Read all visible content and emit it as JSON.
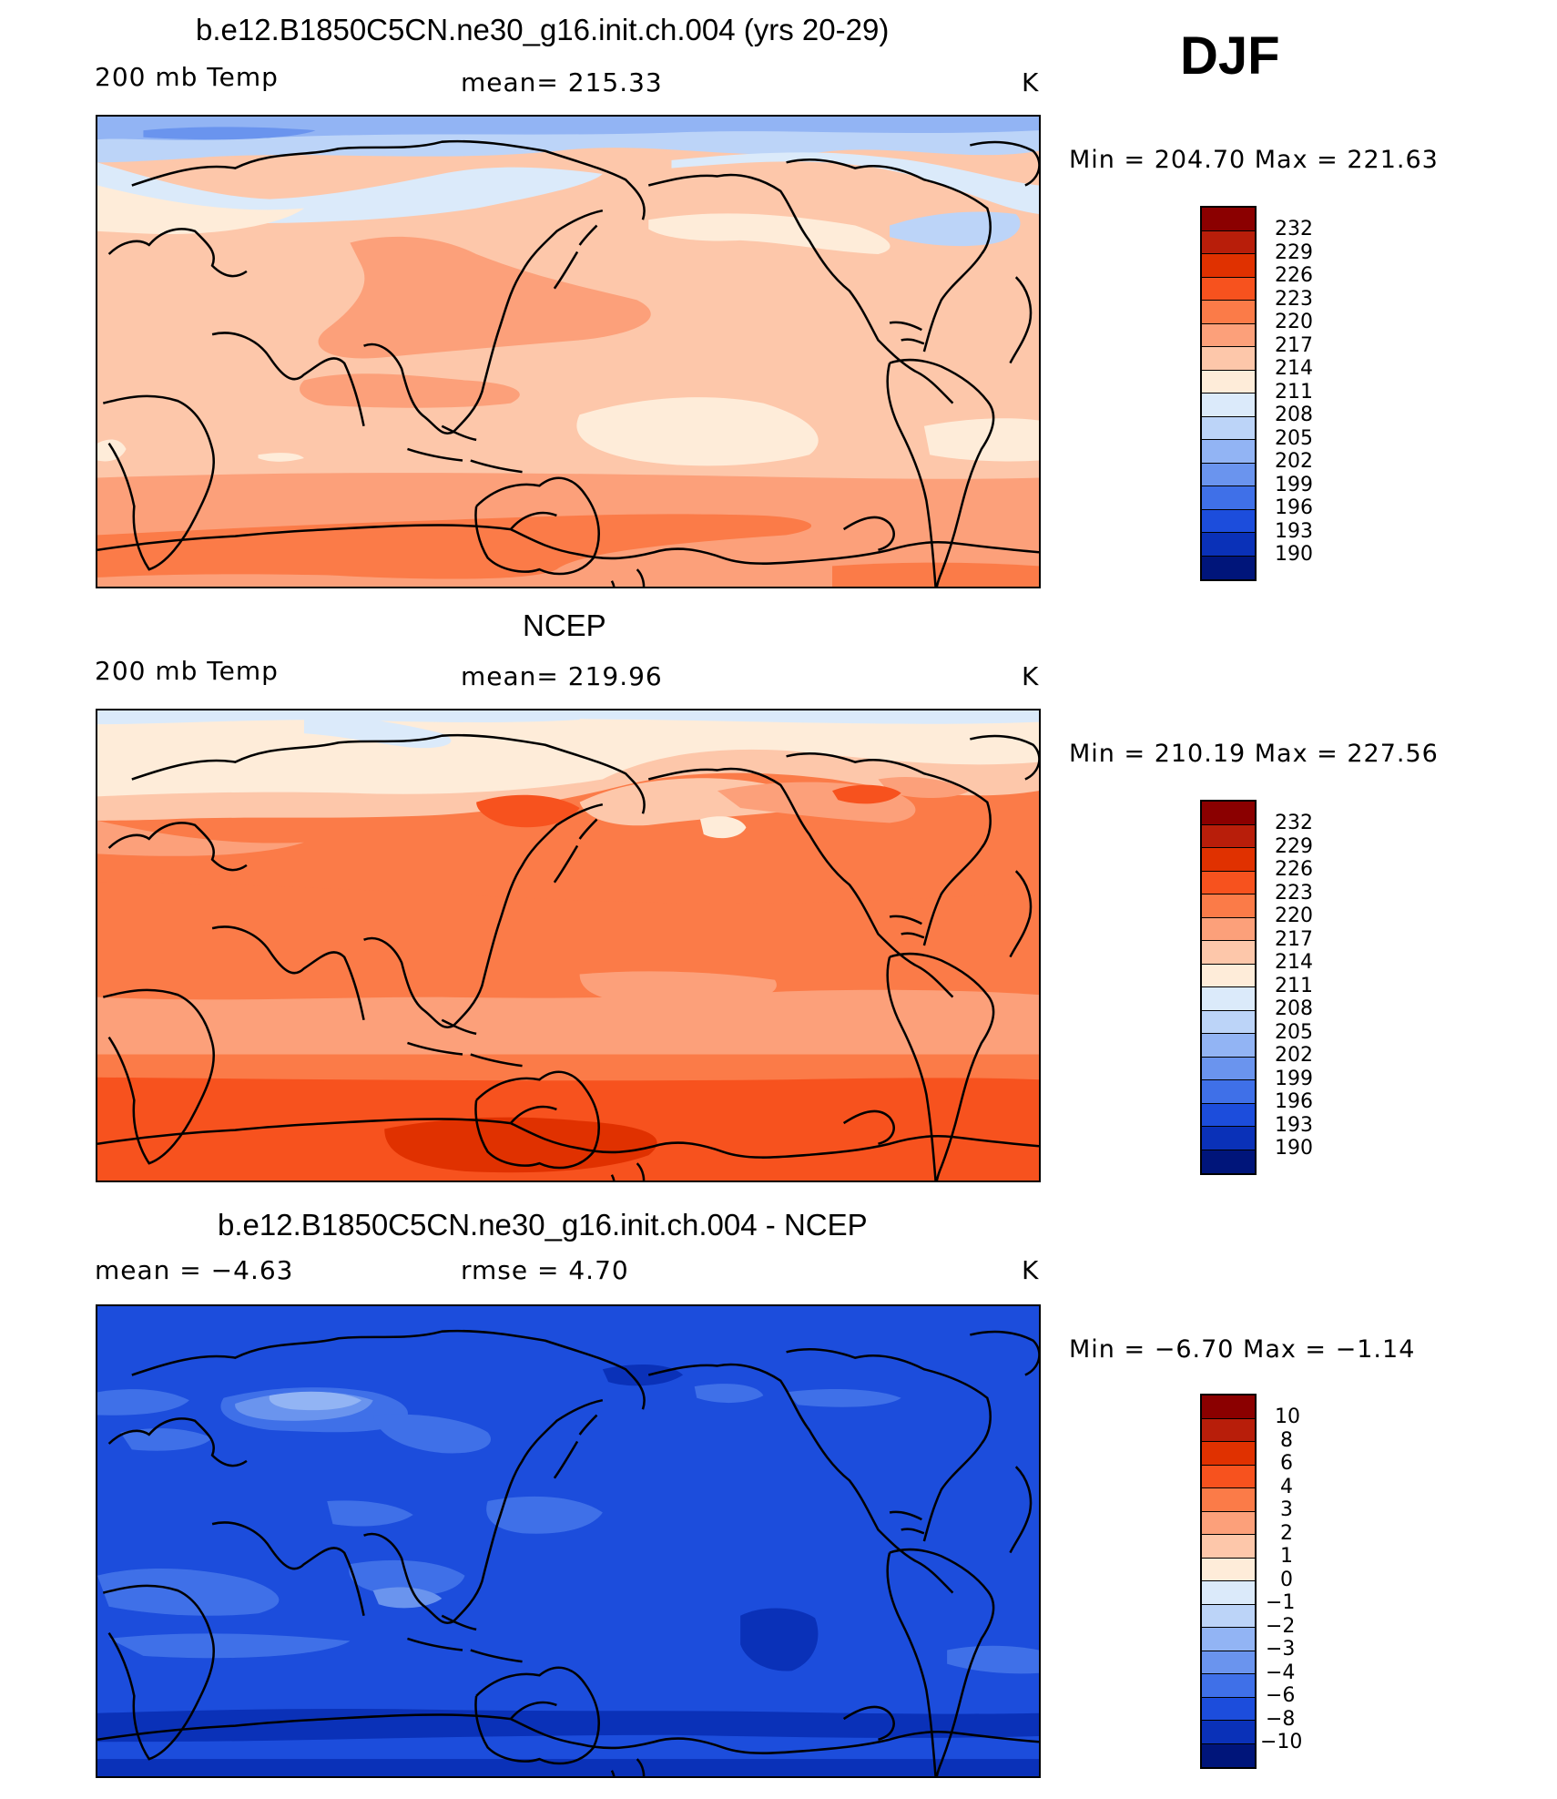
{
  "season": "DJF",
  "panels": [
    {
      "title": "b.e12.B1850C5CN.ne30_g16.init.ch.004 (yrs 20-29)",
      "left_label": "200 mb Temp",
      "center_label": "mean=  215.33",
      "units": "K",
      "minmax": "Min  =  204.70  Max  =  221.63",
      "colorbar_labels": [
        "232",
        "229",
        "226",
        "223",
        "220",
        "217",
        "214",
        "211",
        "208",
        "205",
        "202",
        "199",
        "196",
        "193",
        "190"
      ]
    },
    {
      "title": "NCEP",
      "left_label": "200 mb Temp",
      "center_label": "mean=  219.96",
      "units": "K",
      "minmax": "Min  =  210.19  Max  =  227.56",
      "colorbar_labels": [
        "232",
        "229",
        "226",
        "223",
        "220",
        "217",
        "214",
        "211",
        "208",
        "205",
        "202",
        "199",
        "196",
        "193",
        "190"
      ]
    },
    {
      "title": "b.e12.B1850C5CN.ne30_g16.init.ch.004 - NCEP",
      "left_label": "mean  =   −4.63",
      "center_label": "rmse  =    4.70",
      "units": "K",
      "minmax": "Min  =   −6.70  Max  =   −1.14",
      "colorbar_labels": [
        "10",
        "8",
        "6",
        "4",
        "3",
        "2",
        "1",
        "0",
        "−1",
        "−2",
        "−3",
        "−4",
        "−6",
        "−8",
        "−10"
      ]
    }
  ],
  "colorbar_colors": [
    "#8b0000",
    "#b81e0a",
    "#e03100",
    "#f7521e",
    "#fb7b48",
    "#fca07a",
    "#fdc7aa",
    "#feecd9",
    "#dbeafa",
    "#bcd4f8",
    "#92b4f4",
    "#6a94ee",
    "#3f70e8",
    "#1c4ddc",
    "#0a31b8",
    "#00157a"
  ],
  "field_colors": {
    "c190": "#00157a",
    "c193": "#0a31b8",
    "c196": "#1c4ddc",
    "c199": "#3f70e8",
    "c202": "#6a94ee",
    "c205": "#92b4f4",
    "c208": "#bcd4f8",
    "c211": "#dbeafa",
    "c214": "#feecd9",
    "c217": "#fdc7aa",
    "c220": "#fca07a",
    "c223": "#fb7b48",
    "c226": "#f7521e",
    "c229": "#e03100"
  }
}
